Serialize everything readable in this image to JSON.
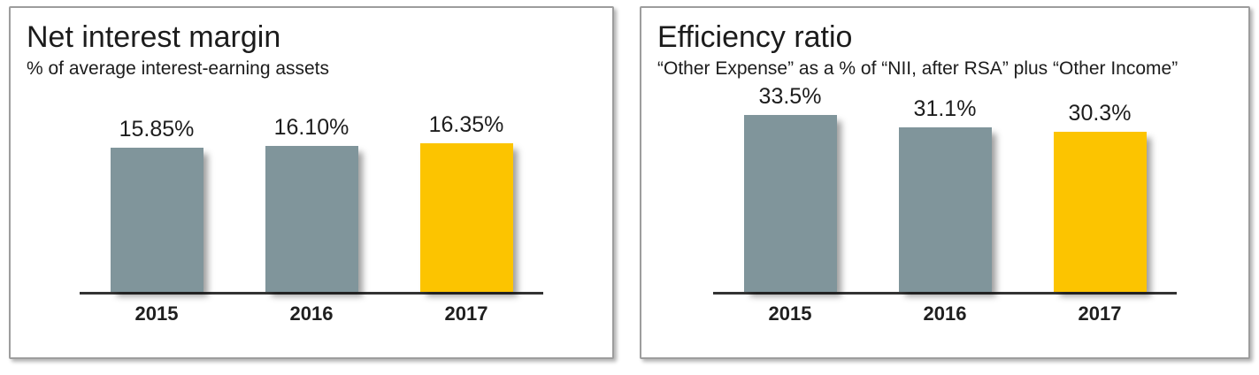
{
  "colors": {
    "bar_gray": "#80959B",
    "bar_gold": "#FCC400",
    "axis_line": "#333333",
    "text": "#1C1C1C",
    "panel_border": "#9D9D9D"
  },
  "chart_data": [
    {
      "type": "bar",
      "title": "Net interest margin",
      "subtitle": "% of average interest-earning assets",
      "categories": [
        "2015",
        "2016",
        "2017"
      ],
      "values": [
        15.85,
        16.1,
        16.35
      ],
      "value_labels": [
        "15.85%",
        "16.10%",
        "16.35%"
      ],
      "bar_colors": [
        "#80959B",
        "#80959B",
        "#FCC400"
      ],
      "ylim": [
        0,
        16.35
      ],
      "xlabel": "",
      "ylabel": "",
      "grid": false,
      "legend": false
    },
    {
      "type": "bar",
      "title": "Efficiency ratio",
      "subtitle": "“Other Expense” as a % of “NII, after RSA” plus “Other Income”",
      "categories": [
        "2015",
        "2016",
        "2017"
      ],
      "values": [
        33.5,
        31.1,
        30.3
      ],
      "value_labels": [
        "33.5%",
        "31.1%",
        "30.3%"
      ],
      "bar_colors": [
        "#80959B",
        "#80959B",
        "#FCC400"
      ],
      "ylim": [
        0,
        33.5
      ],
      "xlabel": "",
      "ylabel": "",
      "grid": false,
      "legend": false
    }
  ]
}
